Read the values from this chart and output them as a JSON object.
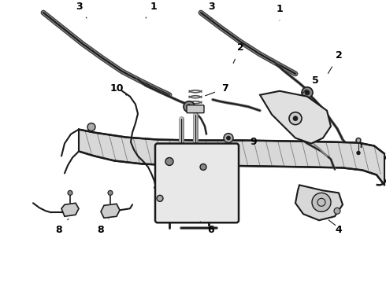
{
  "bg_color": "#ffffff",
  "line_color": "#1a1a1a",
  "label_color": "#000000",
  "fig_width": 4.9,
  "fig_height": 3.6,
  "dpi": 100,
  "gray_fill": "#c8c8c8",
  "light_gray": "#e0e0e0",
  "medium_gray": "#aaaaaa"
}
